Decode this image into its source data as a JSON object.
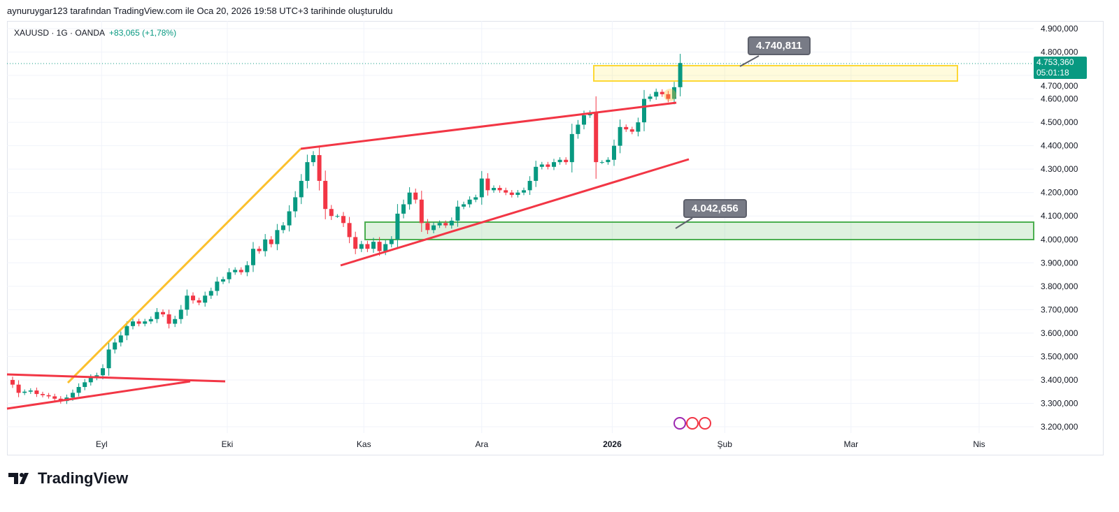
{
  "header": {
    "caption": "aynuruygar123 tarafından TradingView.com ile Oca 20, 2026 19:58 UTC+3 tarihinde oluşturuldu"
  },
  "legend": {
    "symbol": "XAUUSD · 1G · OANDA",
    "change": "+83,065 (+1,78%)"
  },
  "last_price": {
    "price": "4.753,360",
    "countdown": "05:01:18"
  },
  "callouts": {
    "upper": "4.740,811",
    "lower": "4.042,656"
  },
  "brand": {
    "name": "TradingView"
  },
  "colors": {
    "up": "#089981",
    "down": "#f23645",
    "yellow": "#fbc02d",
    "red_line": "#f23645",
    "green_zone": "#4caf50"
  },
  "chart_data": {
    "type": "candlestick",
    "symbol": "XAUUSD",
    "ylim": [
      3150,
      4950
    ],
    "y_ticks": [
      "4.900,000",
      "4.800,000",
      "4.700,000",
      "4.600,000",
      "4.500,000",
      "4.400,000",
      "4.300,000",
      "4.200,000",
      "4.100,000",
      "4.000,000",
      "3.900,000",
      "3.800,000",
      "3.700,000",
      "3.600,000",
      "3.500,000",
      "3.400,000",
      "3.300,000",
      "3.200,000"
    ],
    "y_tick_values": [
      4900,
      4800,
      4700,
      4600,
      4500,
      4400,
      4300,
      4200,
      4100,
      4000,
      3900,
      3800,
      3700,
      3600,
      3500,
      3400,
      3300,
      3200
    ],
    "x_ticks": [
      {
        "label": "Eyl",
        "index": 14.8
      },
      {
        "label": "Eki",
        "index": 35.7
      },
      {
        "label": "Kas",
        "index": 58.4
      },
      {
        "label": "Ara",
        "index": 78
      },
      {
        "label": "2026",
        "index": 99.7
      },
      {
        "label": "Şub",
        "index": 118.4
      },
      {
        "label": "Mar",
        "index": 139.4
      },
      {
        "label": "Nis",
        "index": 160.7
      }
    ],
    "first_open": 3400,
    "closes": [
      3380,
      3345,
      3350,
      3355,
      3340,
      3335,
      3330,
      3320,
      3310,
      3325,
      3345,
      3370,
      3390,
      3410,
      3420,
      3450,
      3530,
      3560,
      3590,
      3630,
      3650,
      3640,
      3650,
      3660,
      3690,
      3680,
      3640,
      3660,
      3700,
      3760,
      3740,
      3730,
      3760,
      3780,
      3820,
      3830,
      3860,
      3870,
      3860,
      3890,
      3960,
      3950,
      4000,
      3980,
      4040,
      4060,
      4120,
      4180,
      4250,
      4330,
      4360,
      4250,
      4130,
      4100,
      4100,
      4070,
      4010,
      3960,
      3980,
      3960,
      3990,
      3950,
      3980,
      4000,
      4110,
      4150,
      4200,
      4170,
      4070,
      4040,
      4060,
      4070,
      4060,
      4080,
      4140,
      4150,
      4170,
      4180,
      4260,
      4210,
      4220,
      4210,
      4200,
      4190,
      4200,
      4210,
      4250,
      4310,
      4320,
      4310,
      4330,
      4340,
      4330,
      4450,
      4490,
      4530,
      4540,
      4330,
      4330,
      4340,
      4400,
      4480,
      4470,
      4460,
      4500,
      4600,
      4610,
      4630,
      4620,
      4600,
      4650,
      4753.36
    ]
  }
}
